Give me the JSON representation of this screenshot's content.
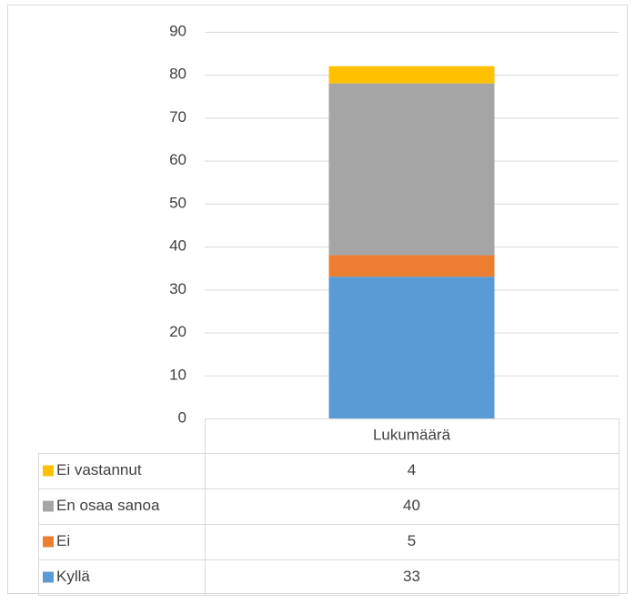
{
  "chart_data": {
    "type": "stacked-bar",
    "categories": [
      "Lukumäärä"
    ],
    "series": [
      {
        "name": "Kyllä",
        "color": "#5b9bd5",
        "values": [
          33
        ]
      },
      {
        "name": "Ei",
        "color": "#ed7d31",
        "values": [
          5
        ]
      },
      {
        "name": "En osaa sanoa",
        "color": "#a5a5a5",
        "values": [
          40
        ]
      },
      {
        "name": "Ei vastannut",
        "color": "#ffc000",
        "values": [
          4
        ]
      }
    ],
    "ylim": [
      0,
      90
    ],
    "yticks": [
      0,
      10,
      20,
      30,
      40,
      50,
      60,
      70,
      80,
      90
    ],
    "grid": true,
    "data_table": true
  }
}
